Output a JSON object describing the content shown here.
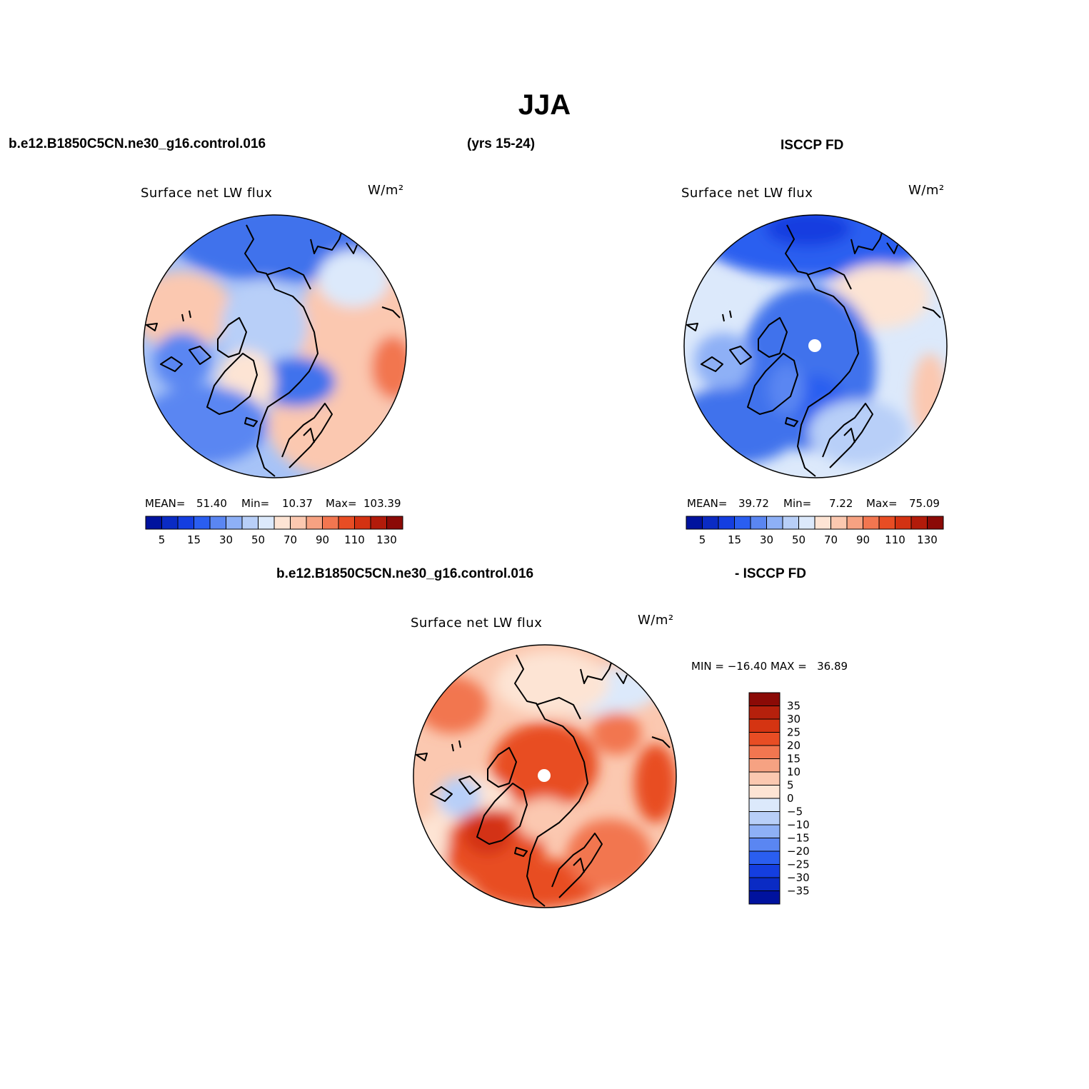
{
  "main_title": "JJA",
  "top_row": {
    "case_name": "b.e12.B1850C5CN.ne30_g16.control.016",
    "years": "(yrs 15-24)",
    "obs_name": "ISCCP FD"
  },
  "panels": {
    "model": {
      "title": "Surface net LW flux",
      "units": "W/m²",
      "mean_label": "MEAN=",
      "mean_value": "51.40",
      "min_label": "Min=",
      "min_value": "10.37",
      "max_label": "Max=",
      "max_value": "103.39"
    },
    "obs": {
      "title": "Surface net LW flux",
      "units": "W/m²",
      "mean_label": "MEAN=",
      "mean_value": "39.72",
      "min_label": "Min=",
      "min_value": "7.22",
      "max_label": "Max=",
      "max_value": "75.09"
    },
    "diff": {
      "case_name": "b.e12.B1850C5CN.ne30_g16.control.016",
      "obs_name": "- ISCCP FD",
      "title": "Surface net LW flux",
      "units": "W/m²",
      "minmax_text": "MIN = −16.40 MAX =   36.89"
    }
  },
  "abs_colorbar": {
    "colors": [
      "#00129e",
      "#0a2bc4",
      "#143ee0",
      "#2a5ef0",
      "#5a86f2",
      "#8eb0f6",
      "#b8cff8",
      "#dce9fb",
      "#fde4d4",
      "#fbc8b0",
      "#f6a282",
      "#f27650",
      "#e84d24",
      "#d33212",
      "#b21b0a",
      "#8b0a06"
    ],
    "tick_labels": [
      "5",
      "15",
      "30",
      "50",
      "70",
      "90",
      "110",
      "130"
    ]
  },
  "diff_colorbar": {
    "colors": [
      "#8b0a06",
      "#b5200c",
      "#d53412",
      "#e84d24",
      "#f27650",
      "#f6a282",
      "#fbc8b0",
      "#fde4d4",
      "#dce9fb",
      "#b8cff8",
      "#8eb0f6",
      "#5a86f2",
      "#2a5ef0",
      "#143ee0",
      "#0a2bc4",
      "#00129e"
    ],
    "tick_labels": [
      "35",
      "30",
      "25",
      "20",
      "15",
      "10",
      "5",
      "0",
      "−5",
      "−10",
      "−15",
      "−20",
      "−25",
      "−30",
      "−35"
    ]
  }
}
